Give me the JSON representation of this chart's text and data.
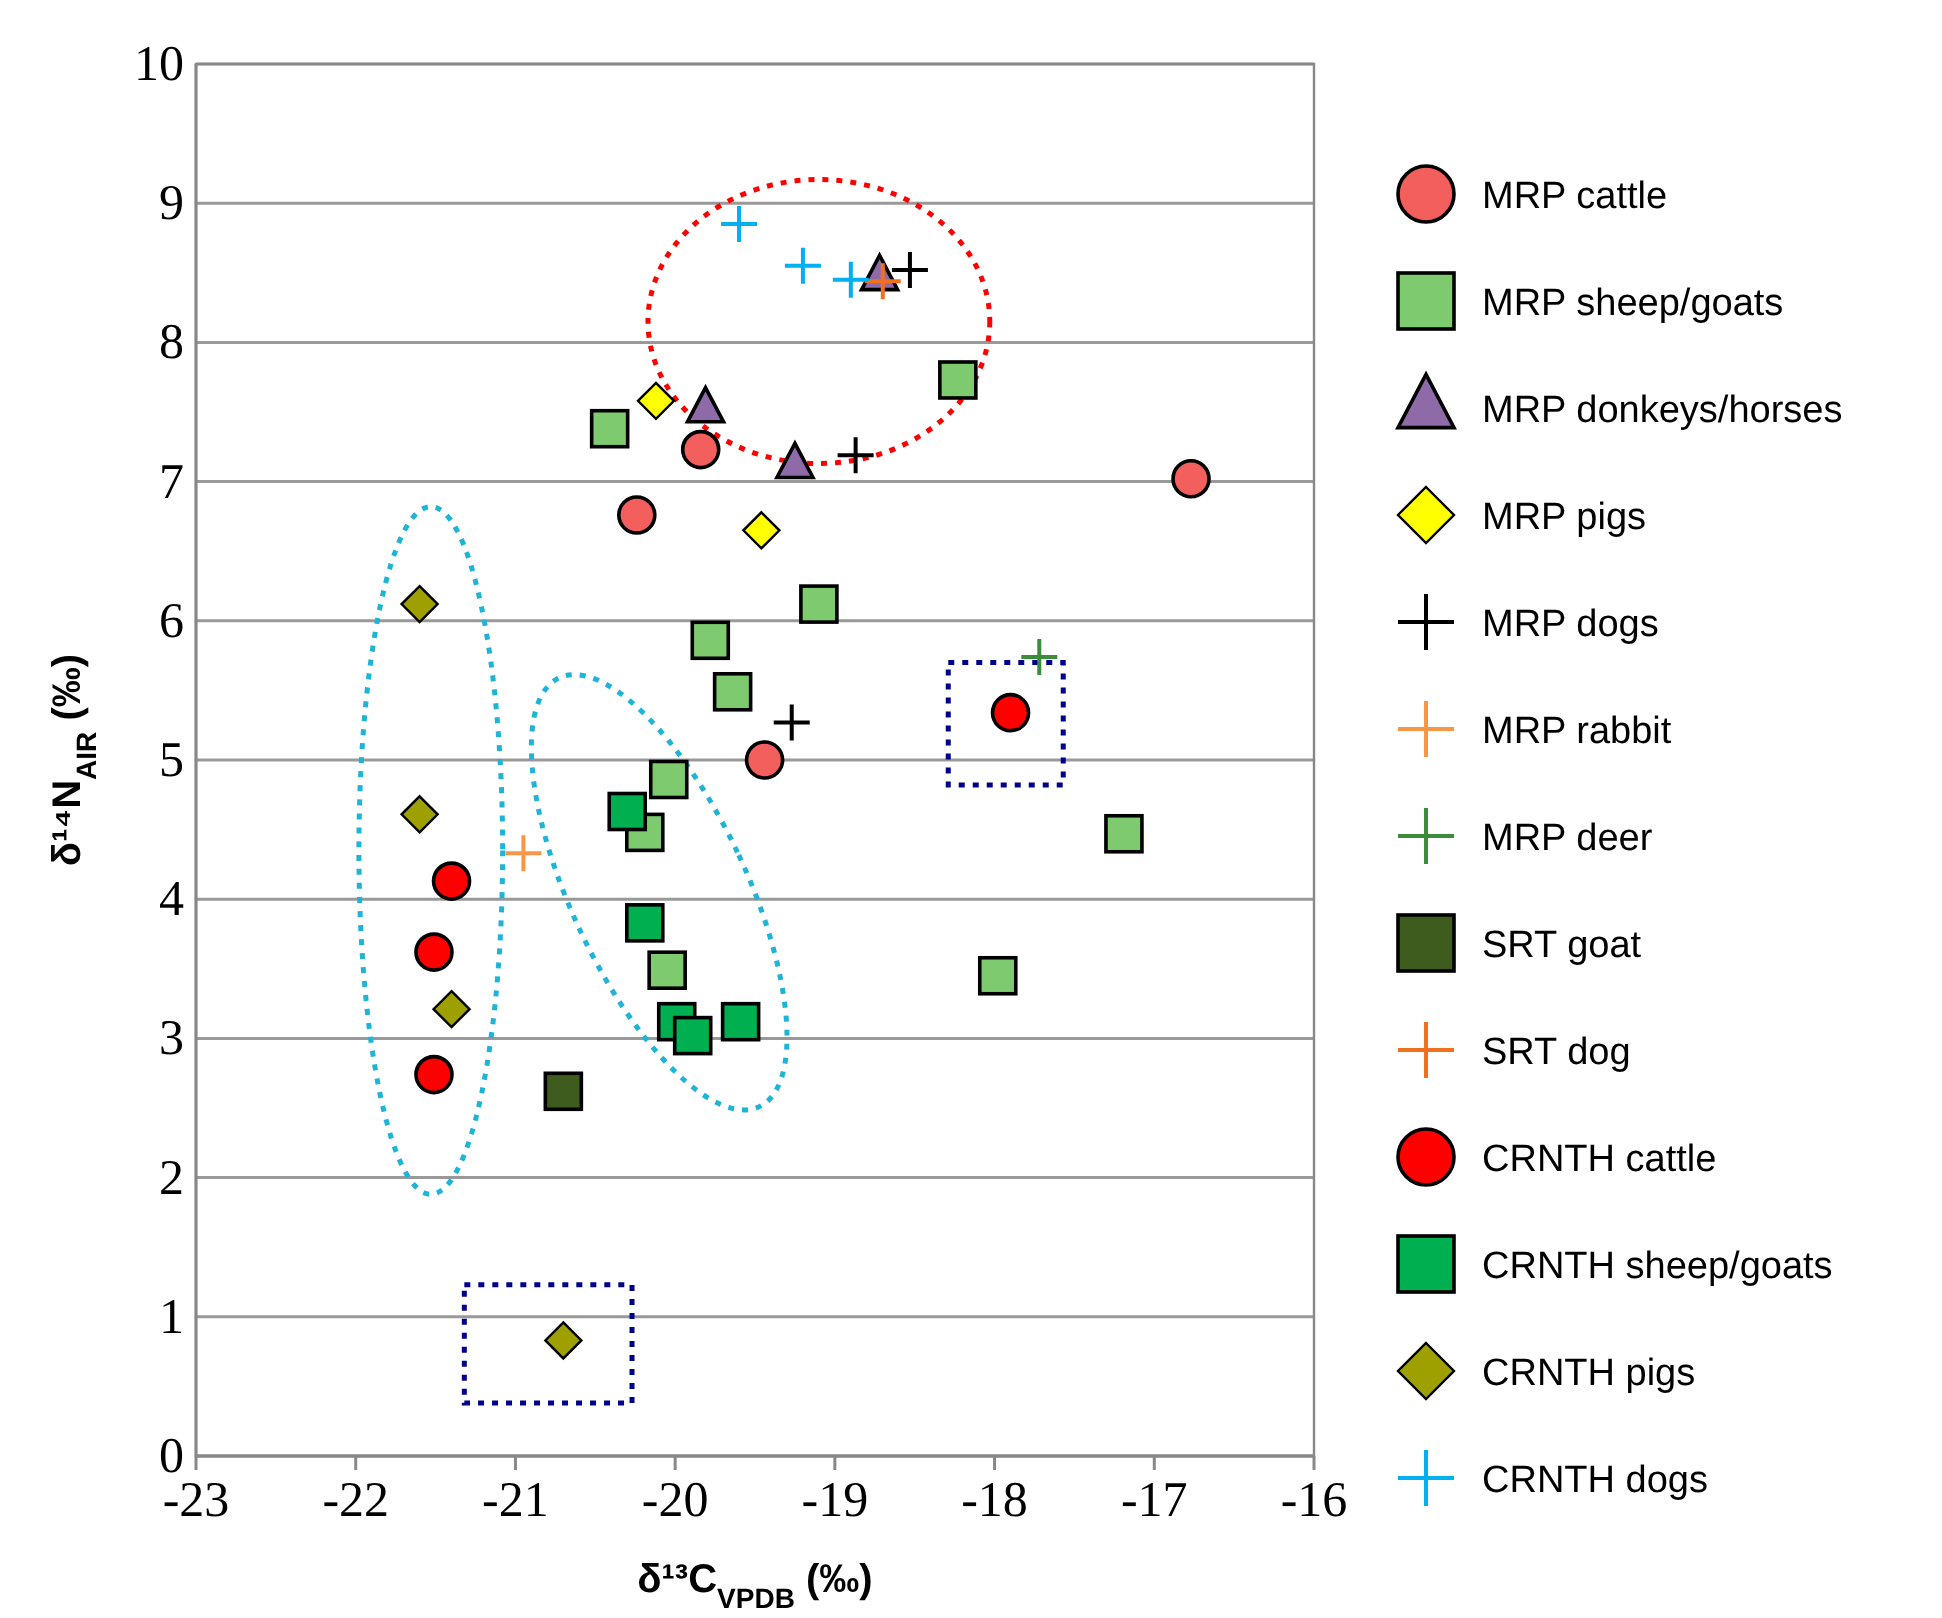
{
  "chart_data": {
    "type": "scatter",
    "xlabel": "δ¹³C$_{VPDB}$ (‰)",
    "ylabel": "δ¹⁴N$_{AIR}$ (‰)",
    "xlim": [
      -23,
      -16
    ],
    "xticks": [
      -23,
      -22,
      -21,
      -20,
      -19,
      -18,
      -17,
      -16
    ],
    "ylim": [
      0,
      10
    ],
    "yticks": [
      0,
      1,
      2,
      3,
      4,
      5,
      6,
      7,
      8,
      9,
      10
    ],
    "grid": "y",
    "legend": "right",
    "series": [
      {
        "name": "MRP cattle",
        "color": "#f25f5c",
        "marker": "circle",
        "x": [
          -19.84,
          -20.24,
          -19.44,
          -16.77
        ],
        "values": [
          7.23,
          6.76,
          5.0,
          7.02
        ]
      },
      {
        "name": "MRP sheep/goats",
        "color": "#7dcb6e",
        "marker": "square",
        "x": [
          -20.41,
          -19.1,
          -19.78,
          -19.64,
          -20.04,
          -20.19,
          -20.05,
          -18.23,
          -17.19,
          -17.98
        ],
        "values": [
          7.38,
          6.12,
          5.86,
          5.49,
          4.86,
          4.48,
          3.49,
          7.73,
          4.47,
          3.45
        ]
      },
      {
        "name": "MRP donkeys/horses",
        "color": "#8e6aa8",
        "marker": "triangle",
        "x": [
          -19.81,
          -19.25,
          -18.72
        ],
        "values": [
          7.52,
          7.12,
          8.47
        ]
      },
      {
        "name": "MRP pigs",
        "color": "#ffff00",
        "marker": "diamond",
        "x": [
          -20.12,
          -19.46
        ],
        "values": [
          7.58,
          6.65
        ]
      },
      {
        "name": "MRP dogs",
        "color": "#000000",
        "marker": "cross",
        "x": [
          -19.27,
          -18.87,
          -18.53
        ],
        "values": [
          5.27,
          7.19,
          8.52
        ]
      },
      {
        "name": "MRP rabbit",
        "color": "#f79646",
        "marker": "cross",
        "x": [
          -20.95
        ],
        "values": [
          4.33
        ]
      },
      {
        "name": "MRP deer",
        "color": "#3c8c3c",
        "marker": "cross",
        "x": [
          -17.72
        ],
        "values": [
          5.74
        ]
      },
      {
        "name": "SRT goat",
        "color": "#3d5c1e",
        "marker": "square",
        "x": [
          -20.7
        ],
        "values": [
          2.62
        ]
      },
      {
        "name": "SRT dog",
        "color": "#f07020",
        "marker": "cross",
        "x": [
          -18.7
        ],
        "values": [
          8.44
        ]
      },
      {
        "name": "CRNTH cattle",
        "color": "#ff0000",
        "marker": "circle",
        "x": [
          -21.4,
          -21.51,
          -21.51,
          -17.9
        ],
        "values": [
          4.13,
          3.62,
          2.74,
          5.34
        ]
      },
      {
        "name": "CRNTH sheep/goats",
        "color": "#00b050",
        "marker": "square",
        "x": [
          -20.3,
          -20.19,
          -19.99,
          -19.89,
          -19.59
        ],
        "values": [
          4.63,
          3.83,
          3.12,
          3.02,
          3.12
        ]
      },
      {
        "name": "CRNTH pigs",
        "color": "#9ea000",
        "marker": "diamond",
        "x": [
          -21.6,
          -21.6,
          -21.4,
          -20.7
        ],
        "values": [
          6.12,
          4.61,
          3.21,
          0.83
        ]
      },
      {
        "name": "CRNTH dogs",
        "color": "#00b0f0",
        "marker": "cross",
        "x": [
          -19.6,
          -19.2,
          -18.9
        ],
        "values": [
          8.85,
          8.55,
          8.45
        ]
      }
    ]
  }
}
